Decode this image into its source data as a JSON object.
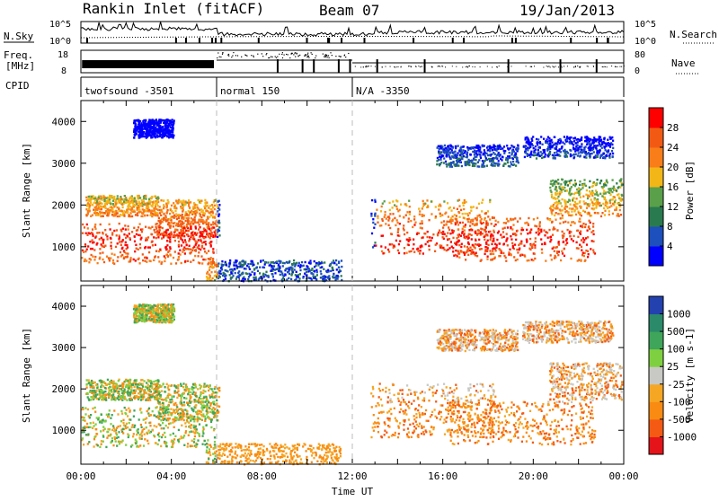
{
  "header": {
    "station": "Rankin Inlet (fitACF)",
    "beam": "Beam 07",
    "date": "19/Jan/2013"
  },
  "status_panels": {
    "nsky_label": "N.Sky",
    "nsearch_label": "N.Search",
    "nsky_ticks": [
      "10^5",
      "10^0"
    ],
    "nsearch_ticks": [
      "10^5",
      "10^0"
    ],
    "freq_label_1": "Freq.",
    "freq_label_2": "[MHz]",
    "freq_ticks": [
      "18",
      "8"
    ],
    "nave_label": "Nave",
    "nave_ticks": [
      "80",
      "0"
    ],
    "cpid_label": "CPID",
    "cpid_segments": [
      {
        "label": "twofsound -3501",
        "start_h": 0,
        "end_h": 6
      },
      {
        "label": "normal 150",
        "start_h": 6,
        "end_h": 12
      },
      {
        "label": "N/A -3350",
        "start_h": 12,
        "end_h": 24
      }
    ]
  },
  "chart_data": [
    {
      "type": "heatmap",
      "title": "",
      "ylabel": "Slant Range [km]",
      "xlabel": "",
      "xlim": [
        0,
        24
      ],
      "ylim": [
        180,
        4500
      ],
      "yticks": [
        1000,
        2000,
        3000,
        4000
      ],
      "colorbar": {
        "label": "Power [dB]",
        "tick_labels": [
          "4",
          "8",
          "12",
          "16",
          "20",
          "24",
          "28"
        ],
        "tick_values": [
          4,
          8,
          12,
          16,
          20,
          24,
          28
        ],
        "range": [
          0,
          30
        ],
        "colors": [
          "#0000ff",
          "#1d4fbd",
          "#2a7a4f",
          "#5aa04a",
          "#f2b617",
          "#f97d19",
          "#f25a14",
          "#ff0000"
        ]
      }
    },
    {
      "type": "heatmap",
      "title": "",
      "ylabel": "Slant Range [km]",
      "xlabel": "Time UT",
      "xlim": [
        0,
        24
      ],
      "ylim": [
        180,
        4500
      ],
      "yticks": [
        1000,
        2000,
        3000,
        4000
      ],
      "xtick_labels": [
        "00:00",
        "04:00",
        "08:00",
        "12:00",
        "16:00",
        "20:00",
        "00:00"
      ],
      "xtick_values": [
        0,
        4,
        8,
        12,
        16,
        20,
        24
      ],
      "colorbar": {
        "label": "Velocity [m s-1]",
        "tick_labels": [
          "1000",
          "500",
          "100",
          "25",
          "-25",
          "-100",
          "-500",
          "-1000"
        ],
        "colors": [
          "#2441b0",
          "#2a8a6a",
          "#3ea55a",
          "#7fd040",
          "#c8c8c4",
          "#f5a623",
          "#f98a12",
          "#f45a14",
          "#e4141a"
        ]
      }
    }
  ]
}
